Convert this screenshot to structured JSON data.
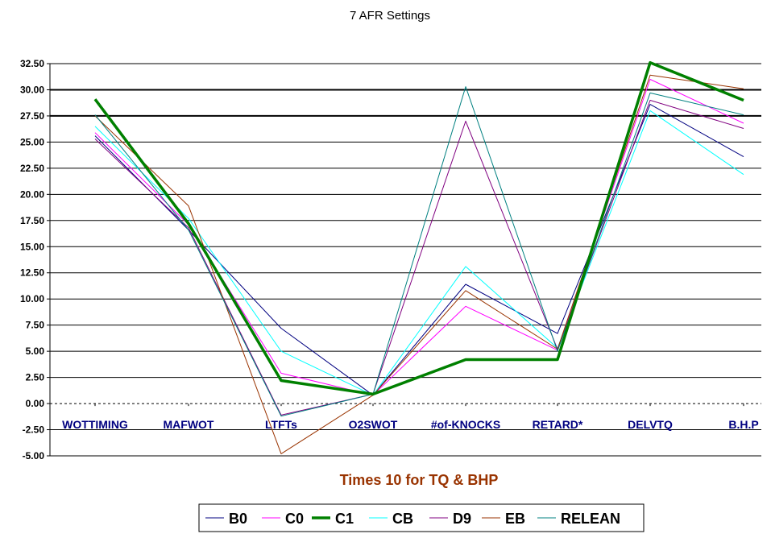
{
  "chart_data": {
    "type": "line",
    "title": "7 AFR Settings",
    "xlabel": "Times 10 for TQ & BHP",
    "ylabel": "",
    "categories": [
      "WOTTIMING",
      "MAFWOT",
      "LTFTs",
      "O2SWOT",
      "#of-KNOCKS",
      "RETARD*",
      "DELVTQ",
      "B.H.P"
    ],
    "ylim": [
      -5,
      32.5
    ],
    "yticks": [
      -5,
      -2.5,
      0,
      2.5,
      5,
      7.5,
      10,
      12.5,
      15,
      17.5,
      20,
      22.5,
      25,
      27.5,
      30,
      32.5
    ],
    "ytick_labels": [
      "-5.00",
      "-2.50",
      "0.00",
      "2.50",
      "5.00",
      "7.50",
      "10.00",
      "12.50",
      "15.00",
      "17.50",
      "20.00",
      "22.50",
      "25.00",
      "27.50",
      "30.00",
      "32.50"
    ],
    "emphasized_gridlines": [
      27.5,
      30
    ],
    "grid": true,
    "legend_position": "bottom",
    "series": [
      {
        "name": "B0",
        "color": "#000080",
        "width": 1,
        "values": [
          25.6,
          16.6,
          7.2,
          0.8,
          11.4,
          6.7,
          28.6,
          23.6
        ]
      },
      {
        "name": "C0",
        "color": "#ff00ff",
        "width": 1,
        "values": [
          25.9,
          17.1,
          2.9,
          0.8,
          9.3,
          5.1,
          31.0,
          26.8
        ]
      },
      {
        "name": "C1",
        "color": "#008000",
        "width": 3.5,
        "values": [
          29.1,
          17.2,
          2.2,
          0.9,
          4.2,
          4.2,
          32.6,
          29.0
        ]
      },
      {
        "name": "CB",
        "color": "#00ffff",
        "width": 1,
        "values": [
          26.5,
          17.7,
          5.0,
          0.8,
          13.1,
          5.3,
          28.0,
          21.9
        ]
      },
      {
        "name": "D9",
        "color": "#800080",
        "width": 1,
        "values": [
          25.3,
          16.8,
          -1.1,
          0.9,
          27.0,
          5.2,
          29.0,
          26.3
        ]
      },
      {
        "name": "EB",
        "color": "#993300",
        "width": 1,
        "values": [
          27.5,
          18.9,
          -4.8,
          0.8,
          10.8,
          5.2,
          31.4,
          30.1
        ]
      },
      {
        "name": "RELEAN",
        "color": "#008080",
        "width": 1,
        "values": [
          27.6,
          16.6,
          -1.2,
          0.9,
          30.3,
          5.0,
          29.7,
          27.6
        ]
      }
    ]
  }
}
